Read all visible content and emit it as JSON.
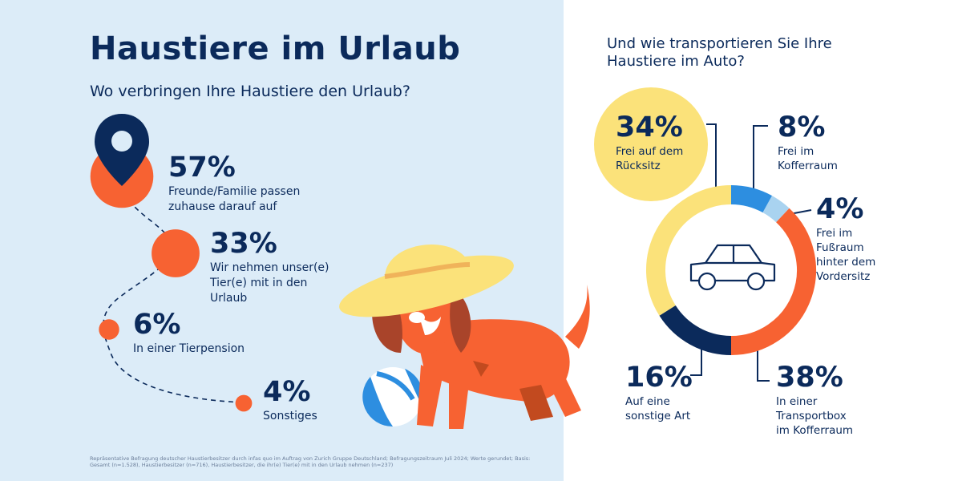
{
  "colors": {
    "navy": "#0b2a5b",
    "orange": "#f76232",
    "yellow": "#fbe27a",
    "blue": "#2d8ee0",
    "light_blue": "#a9d3f0",
    "left_bg": "#dcecf8"
  },
  "left": {
    "title": "Haustiere im Urlaub",
    "subtitle": "Wo verbringen Ihre Haustiere den Urlaub?",
    "footnote": "Repräsentative Befragung deutscher Haustierbesitzer durch infas quo im Auftrag von Zurich Gruppe Deutschland; Befragungszeitraum Juli 2024; Werte gerundet; Basis: Gesamt (n=1.528), Haustierbesitzer (n=716), Haustierbesitzer, die ihr(e) Tier(e) mit in den Urlaub nehmen (n=237)"
  },
  "right": {
    "title": "Und wie transportieren Sie Ihre Haustiere im Auto?"
  },
  "chart_data": [
    {
      "type": "bar",
      "title": "Wo verbringen Ihre Haustiere den Urlaub?",
      "unit": "%",
      "categories": [
        "Freunde/Familie passen zuhause darauf auf",
        "Wir nehmen unser(e) Tier(e) mit in den Urlaub",
        "In einer Tierpension",
        "Sonstiges"
      ],
      "values": [
        57,
        33,
        6,
        4
      ],
      "labels": [
        "57%",
        "33%",
        "6%",
        "4%"
      ]
    },
    {
      "type": "pie",
      "title": "Und wie transportieren Sie Ihre Haustiere im Auto?",
      "unit": "%",
      "categories": [
        "Frei auf dem Rücksitz",
        "Frei im Kofferraum",
        "Frei im Fußraum hinter dem Vordersitz",
        "In einer Transportbox im Kofferraum",
        "Auf eine sonstige Art"
      ],
      "values": [
        34,
        8,
        4,
        38,
        16
      ],
      "labels": [
        "34%",
        "8%",
        "4%",
        "38%",
        "16%"
      ],
      "colors": [
        "#fbe27a",
        "#2d8ee0",
        "#a9d3f0",
        "#f76232",
        "#0b2a5b"
      ]
    }
  ]
}
